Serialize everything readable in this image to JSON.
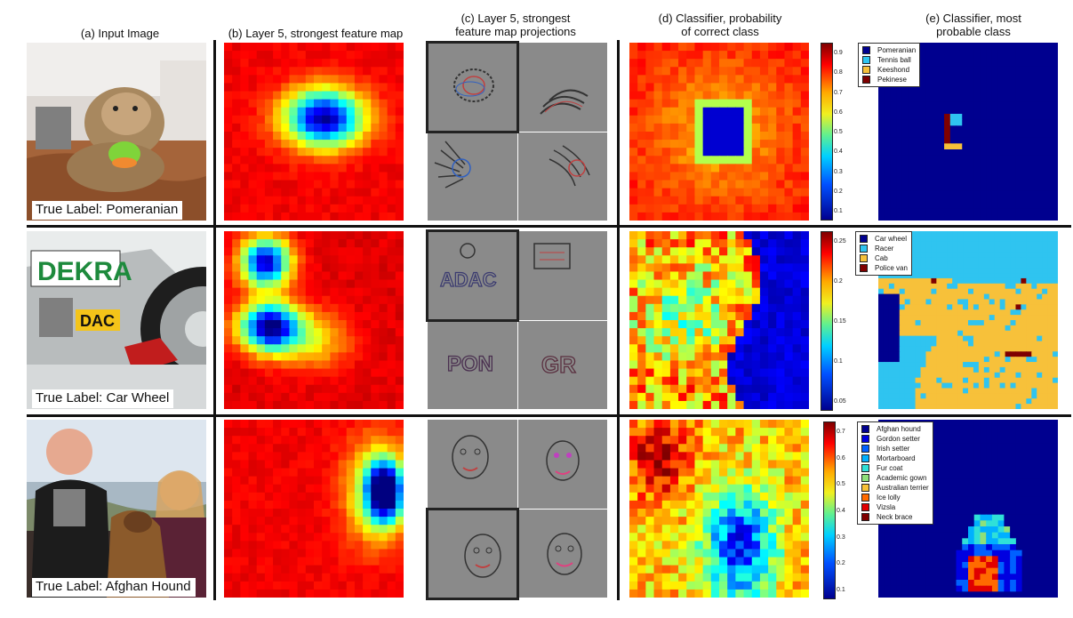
{
  "columns": {
    "a": "(a) Input Image",
    "b": "(b) Layer 5, strongest feature map",
    "c_line1": "(c) Layer 5, strongest",
    "c_line2": "feature map projections",
    "d_line1": "(d) Classifier, probability",
    "d_line2": "of correct class",
    "e_line1": "(e) Classifier, most",
    "e_line2": "probable class"
  },
  "rows": [
    {
      "true_label": "True Label: Pomeranian",
      "colorbar_ticks": [
        "0.9",
        "0.8",
        "0.7",
        "0.6",
        "0.5",
        "0.4",
        "0.3",
        "0.2",
        "0.1"
      ],
      "legend": [
        {
          "label": "Pomeranian",
          "color": "#00008f"
        },
        {
          "label": "Tennis ball",
          "color": "#2fc4f0"
        },
        {
          "label": "Keeshond",
          "color": "#f7c13a"
        },
        {
          "label": "Pekinese",
          "color": "#7f0000"
        }
      ]
    },
    {
      "true_label": "True Label: Car Wheel",
      "colorbar_ticks": [
        "0.25",
        "0.2",
        "0.15",
        "0.1",
        "0.05"
      ],
      "legend": [
        {
          "label": "Car wheel",
          "color": "#00008f"
        },
        {
          "label": "Racer",
          "color": "#2fc4f0"
        },
        {
          "label": "Cab",
          "color": "#f7c13a"
        },
        {
          "label": "Police van",
          "color": "#7f0000"
        }
      ]
    },
    {
      "true_label": "True Label: Afghan Hound",
      "colorbar_ticks": [
        "0.7",
        "0.6",
        "0.5",
        "0.4",
        "0.3",
        "0.2",
        "0.1"
      ],
      "legend": [
        {
          "label": "Afghan hound",
          "color": "#00008f"
        },
        {
          "label": "Gordon setter",
          "color": "#0000e0"
        },
        {
          "label": "Irish setter",
          "color": "#0060ff"
        },
        {
          "label": "Mortarboard",
          "color": "#00b0ff"
        },
        {
          "label": "Fur coat",
          "color": "#2fe0d8"
        },
        {
          "label": "Academic gown",
          "color": "#8ee07a"
        },
        {
          "label": "Australian terrier",
          "color": "#f7c13a"
        },
        {
          "label": "Ice lolly",
          "color": "#ff6a00"
        },
        {
          "label": "Vizsla",
          "color": "#e00000"
        },
        {
          "label": "Neck brace",
          "color": "#7f0000"
        }
      ]
    }
  ],
  "projection_texts": {
    "car_1": "ADAC",
    "car_2": "PON",
    "car_3": "GR"
  },
  "colors": {
    "jet_dark_red": "#7f0000",
    "jet_red": "#e02010",
    "jet_yellow": "#f0e040",
    "jet_cyan": "#30d0f0",
    "jet_blue": "#0020e0",
    "jet_dark_blue": "#00008f",
    "occluder_gray": "#7f7f7f",
    "projection_gray": "#8a8a8a"
  }
}
